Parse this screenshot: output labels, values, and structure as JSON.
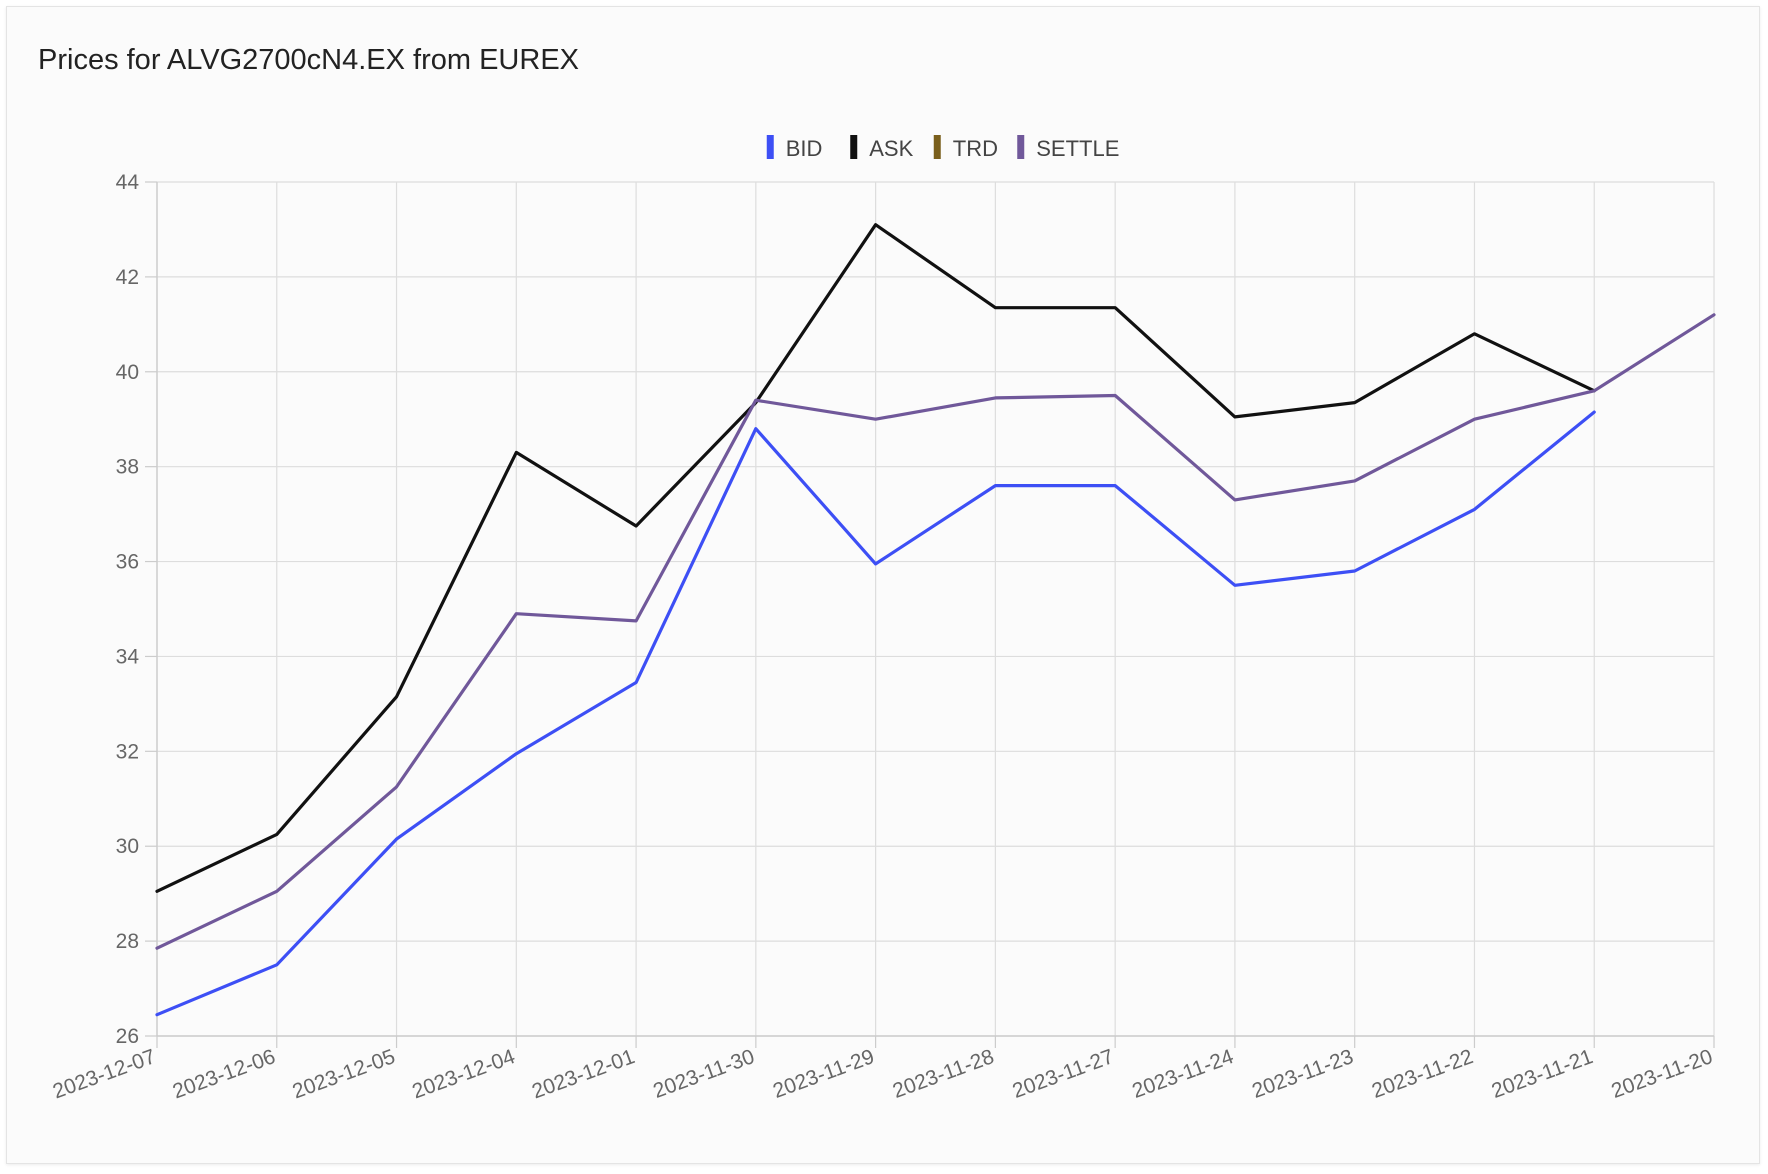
{
  "header": {
    "title": "Prices for ALVG2700cN4.EX from EUREX"
  },
  "chart_data": {
    "type": "line",
    "title": "Prices for ALVG2700cN4.EX from EUREX",
    "xlabel": "",
    "ylabel": "",
    "ylim": [
      26,
      44
    ],
    "yticks": [
      26,
      28,
      30,
      32,
      34,
      36,
      38,
      40,
      42,
      44
    ],
    "grid": true,
    "legend_position": "top-center",
    "categories": [
      "2023-12-07",
      "2023-12-06",
      "2023-12-05",
      "2023-12-04",
      "2023-12-01",
      "2023-11-30",
      "2023-11-29",
      "2023-11-28",
      "2023-11-27",
      "2023-11-24",
      "2023-11-23",
      "2023-11-22",
      "2023-11-21",
      "2023-11-20"
    ],
    "series": [
      {
        "name": "BID",
        "color": "#3d4ff5",
        "values": [
          26.45,
          27.5,
          30.15,
          31.95,
          33.45,
          38.8,
          35.95,
          37.6,
          37.6,
          35.5,
          35.8,
          37.1,
          39.15,
          null
        ]
      },
      {
        "name": "ASK",
        "color": "#111111",
        "values": [
          29.05,
          30.25,
          33.15,
          38.3,
          36.75,
          39.35,
          43.1,
          41.35,
          41.35,
          39.05,
          39.35,
          40.8,
          39.6,
          null
        ]
      },
      {
        "name": "TRD",
        "color": "#7a5f1c",
        "values": [
          null,
          null,
          null,
          null,
          null,
          null,
          null,
          null,
          null,
          null,
          null,
          null,
          null,
          null
        ]
      },
      {
        "name": "SETTLE",
        "color": "#70589a",
        "values": [
          27.85,
          29.05,
          31.25,
          34.9,
          34.75,
          39.4,
          39.0,
          39.45,
          39.5,
          37.3,
          37.7,
          39.0,
          39.6,
          41.2
        ]
      }
    ]
  }
}
